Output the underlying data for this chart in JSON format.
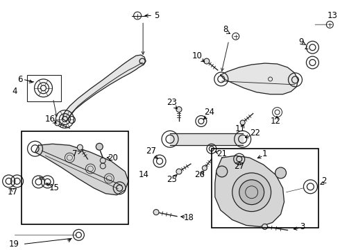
{
  "bg_color": "#ffffff",
  "fig_width": 4.9,
  "fig_height": 3.6,
  "dpi": 100,
  "label_fontsize": 8.5,
  "label_color": "#000000",
  "line_color": "#000000",
  "part_color": "#222222",
  "part_lw": 0.9
}
